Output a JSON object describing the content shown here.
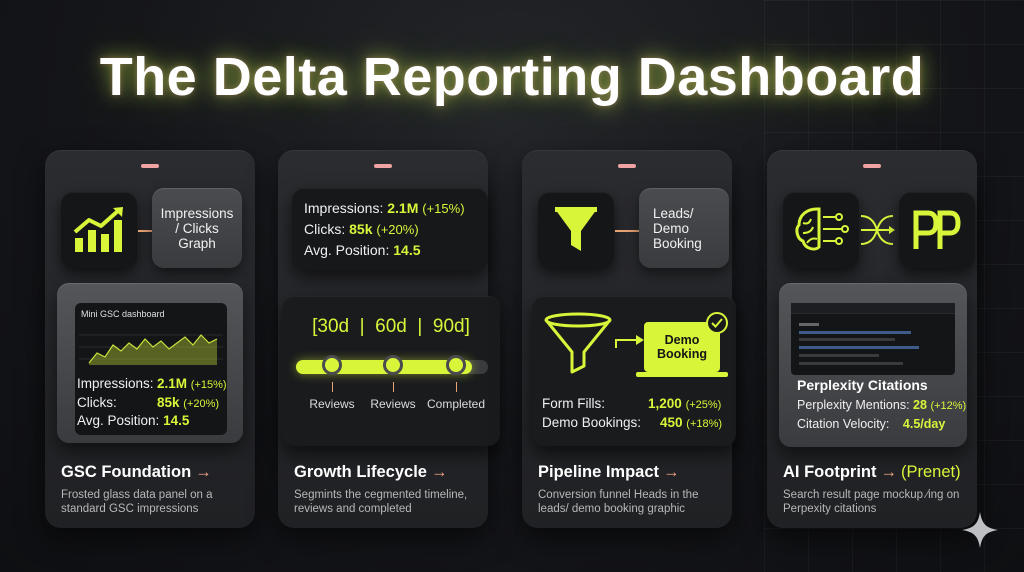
{
  "title": "The Delta Reporting Dashboard",
  "colors": {
    "accent": "#d8f53a",
    "connector": "#e9a273",
    "pill": "#f0a3a3",
    "card_bg": "#25262a"
  },
  "cards": [
    {
      "icon": "bar-chart-trend-icon",
      "glass_label": "Impressions / Clicks Graph",
      "panel_title": "Mini GSC dashboard",
      "stats": [
        {
          "label": "Impressions:",
          "value": "2.1M",
          "delta": "(+15%)"
        },
        {
          "label": "Clicks:",
          "value": "85k",
          "delta": "(+20%)"
        },
        {
          "label": "Avg. Position:",
          "value": "14.5",
          "delta": ""
        }
      ],
      "title": "GSC Foundation",
      "arrow": "→",
      "description": "Frosted glass data panel on a standard GSC impressions"
    },
    {
      "stats_top": [
        {
          "label": "Impressions:",
          "value": "2.1M",
          "delta": "(+15%)"
        },
        {
          "label": "Clicks:",
          "value": "85k",
          "delta": "(+20%)"
        },
        {
          "label": "Avg. Position:",
          "value": "14.5",
          "delta": ""
        }
      ],
      "timeline_label": "[30d  |  60d  |  90d]",
      "milestones": [
        "Reviews",
        "Reviews",
        "Completed"
      ],
      "title": "Growth Lifecycle",
      "arrow": "→",
      "description": "Segmints the cegmented timeline, reviews and completed"
    },
    {
      "icon": "funnel-icon",
      "glass_label": "Leads/ Demo Booking",
      "demo_label": "Demo Booking",
      "stats": [
        {
          "label": "Form Fills:",
          "value": "1,200",
          "delta": "(+25%)"
        },
        {
          "label": "Demo Bookings:",
          "value": "450",
          "delta": "(+18%)"
        }
      ],
      "title": "Pipeline Impact",
      "arrow": "→",
      "description": "Conversion funnel Heads in the leads/ demo booking graphic"
    },
    {
      "icons": [
        "brain-circuit-icon",
        "perplexity-logo-icon"
      ],
      "panel_title": "Perplexity Citations",
      "stats": [
        {
          "label": "Perplexity Mentions:",
          "value": "28",
          "delta": "(+12%)"
        },
        {
          "label": "Citation Velocity:",
          "value": "4.5/day",
          "delta": ""
        }
      ],
      "title": "AI Footprint",
      "arrow": "→",
      "title_extra": "(Prenet)",
      "description": "Search result page mockup ∕ing on Perpexity citations"
    }
  ]
}
